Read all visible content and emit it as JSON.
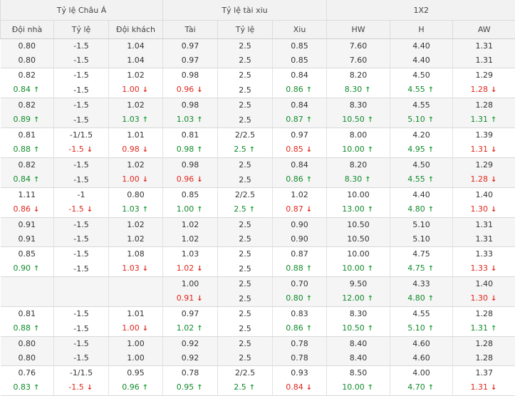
{
  "groups": [
    "Tỷ lệ Châu Á",
    "Tỷ lệ tài xiu",
    "1X2"
  ],
  "columns": [
    "Đội nhà",
    "Tỷ lệ",
    "Đội khách",
    "Tài",
    "Tỷ lệ",
    "Xiu",
    "HW",
    "H",
    "AW"
  ],
  "column_keys": [
    "home",
    "hcp",
    "away",
    "over",
    "ou_line",
    "under",
    "hw",
    "h",
    "aw"
  ],
  "rows": [
    {
      "home": "0.80",
      "hcp": "-1.5",
      "away": "1.04",
      "over": "0.97",
      "ou_line": "2.5",
      "under": "0.85",
      "hw": "7.60",
      "h": "4.40",
      "aw": "1.31"
    },
    {
      "home": "0.80",
      "hcp": "-1.5",
      "away": "1.04",
      "over": "0.97",
      "ou_line": "2.5",
      "under": "0.85",
      "hw": "7.60",
      "h": "4.40",
      "aw": "1.31"
    },
    {
      "home": "0.82",
      "hcp": "-1.5",
      "away": "1.02",
      "over": "0.98",
      "ou_line": "2.5",
      "under": "0.84",
      "hw": "8.20",
      "h": "4.50",
      "aw": "1.29"
    },
    {
      "home": "0.84",
      "hcp": "-1.5",
      "away": "1.00",
      "over": "0.96",
      "ou_line": "2.5",
      "under": "0.86",
      "hw": "8.30",
      "h": "4.55",
      "aw": "1.28"
    },
    {
      "home": "0.82",
      "hcp": "-1.5",
      "away": "1.02",
      "over": "0.98",
      "ou_line": "2.5",
      "under": "0.84",
      "hw": "8.30",
      "h": "4.55",
      "aw": "1.28"
    },
    {
      "home": "0.89",
      "hcp": "-1.5",
      "away": "1.03",
      "over": "1.03",
      "ou_line": "2.5",
      "under": "0.87",
      "hw": "10.50",
      "h": "5.10",
      "aw": "1.31"
    },
    {
      "home": "0.81",
      "hcp": "-1/1.5",
      "away": "1.01",
      "over": "0.81",
      "ou_line": "2/2.5",
      "under": "0.97",
      "hw": "8.00",
      "h": "4.20",
      "aw": "1.39"
    },
    {
      "home": "0.88",
      "hcp": "-1.5",
      "away": "0.98",
      "over": "0.98",
      "ou_line": "2.5",
      "under": "0.85",
      "hw": "10.00",
      "h": "4.95",
      "aw": "1.31"
    },
    {
      "home": "0.82",
      "hcp": "-1.5",
      "away": "1.02",
      "over": "0.98",
      "ou_line": "2.5",
      "under": "0.84",
      "hw": "8.20",
      "h": "4.50",
      "aw": "1.29"
    },
    {
      "home": "0.84",
      "hcp": "-1.5",
      "away": "1.00",
      "over": "0.96",
      "ou_line": "2.5",
      "under": "0.86",
      "hw": "8.30",
      "h": "4.55",
      "aw": "1.28"
    },
    {
      "home": "1.11",
      "hcp": "-1",
      "away": "0.80",
      "over": "0.85",
      "ou_line": "2/2.5",
      "under": "1.02",
      "hw": "10.00",
      "h": "4.40",
      "aw": "1.40"
    },
    {
      "home": "0.86",
      "hcp": "-1.5",
      "away": "1.03",
      "over": "1.00",
      "ou_line": "2.5",
      "under": "0.87",
      "hw": "13.00",
      "h": "4.80",
      "aw": "1.30"
    },
    {
      "home": "0.91",
      "hcp": "-1.5",
      "away": "1.02",
      "over": "1.02",
      "ou_line": "2.5",
      "under": "0.90",
      "hw": "10.50",
      "h": "5.10",
      "aw": "1.31"
    },
    {
      "home": "0.91",
      "hcp": "-1.5",
      "away": "1.02",
      "over": "1.02",
      "ou_line": "2.5",
      "under": "0.90",
      "hw": "10.50",
      "h": "5.10",
      "aw": "1.31"
    },
    {
      "home": "0.85",
      "hcp": "-1.5",
      "away": "1.08",
      "over": "1.03",
      "ou_line": "2.5",
      "under": "0.87",
      "hw": "10.00",
      "h": "4.75",
      "aw": "1.33"
    },
    {
      "home": "0.90",
      "hcp": "-1.5",
      "away": "1.03",
      "over": "1.02",
      "ou_line": "2.5",
      "under": "0.88",
      "hw": "10.00",
      "h": "4.75",
      "aw": "1.33"
    },
    {
      "home": "",
      "hcp": "",
      "away": "",
      "over": "1.00",
      "ou_line": "2.5",
      "under": "0.70",
      "hw": "9.50",
      "h": "4.33",
      "aw": "1.40"
    },
    {
      "home": "",
      "hcp": "",
      "away": "",
      "over": "0.91",
      "ou_line": "2.5",
      "under": "0.80",
      "hw": "12.00",
      "h": "4.80",
      "aw": "1.30"
    },
    {
      "home": "0.81",
      "hcp": "-1.5",
      "away": "1.01",
      "over": "0.97",
      "ou_line": "2.5",
      "under": "0.83",
      "hw": "8.30",
      "h": "4.55",
      "aw": "1.28"
    },
    {
      "home": "0.88",
      "hcp": "-1.5",
      "away": "1.00",
      "over": "1.02",
      "ou_line": "2.5",
      "under": "0.86",
      "hw": "10.50",
      "h": "5.10",
      "aw": "1.31"
    },
    {
      "home": "0.80",
      "hcp": "-1.5",
      "away": "1.00",
      "over": "0.92",
      "ou_line": "2.5",
      "under": "0.78",
      "hw": "8.40",
      "h": "4.60",
      "aw": "1.28"
    },
    {
      "home": "0.80",
      "hcp": "-1.5",
      "away": "1.00",
      "over": "0.92",
      "ou_line": "2.5",
      "under": "0.78",
      "hw": "8.40",
      "h": "4.60",
      "aw": "1.28"
    },
    {
      "home": "0.76",
      "hcp": "-1/1.5",
      "away": "0.95",
      "over": "0.78",
      "ou_line": "2/2.5",
      "under": "0.93",
      "hw": "8.50",
      "h": "4.00",
      "aw": "1.37"
    },
    {
      "home": "0.83",
      "hcp": "-1.5",
      "away": "0.96",
      "over": "0.95",
      "ou_line": "2.5",
      "under": "0.84",
      "hw": "10.00",
      "h": "4.70",
      "aw": "1.31"
    }
  ],
  "changes": [
    {},
    {},
    {},
    {
      "home": "up",
      "away": "down",
      "over": "down",
      "under": "up",
      "hw": "up",
      "h": "up",
      "aw": "down"
    },
    {},
    {
      "home": "up",
      "away": "up",
      "over": "up",
      "under": "up",
      "hw": "up",
      "h": "up",
      "aw": "up"
    },
    {},
    {
      "home": "up",
      "hcp": "down",
      "away": "down",
      "over": "up",
      "ou_line": "up",
      "under": "down",
      "hw": "up",
      "h": "up",
      "aw": "down"
    },
    {},
    {
      "home": "up",
      "away": "down",
      "over": "down",
      "under": "up",
      "hw": "up",
      "h": "up",
      "aw": "down"
    },
    {},
    {
      "home": "down",
      "hcp": "down",
      "away": "up",
      "over": "up",
      "ou_line": "up",
      "under": "down",
      "hw": "up",
      "h": "up",
      "aw": "down"
    },
    {},
    {},
    {},
    {
      "home": "up",
      "away": "down",
      "over": "down",
      "under": "up",
      "hw": "up",
      "h": "up",
      "aw": "down"
    },
    {},
    {
      "over": "down",
      "under": "up",
      "hw": "up",
      "h": "up",
      "aw": "down"
    },
    {},
    {
      "home": "up",
      "away": "down",
      "over": "up",
      "under": "up",
      "hw": "up",
      "h": "up",
      "aw": "up"
    },
    {},
    {},
    {},
    {
      "home": "up",
      "hcp": "down",
      "away": "up",
      "over": "up",
      "ou_line": "up",
      "under": "down",
      "hw": "up",
      "h": "up",
      "aw": "down"
    }
  ],
  "colors": {
    "up": "#0f8a2a",
    "down": "#e0261b",
    "header_bg": "#f2f2f2",
    "alt_row_bg": "#f5f5f5"
  }
}
